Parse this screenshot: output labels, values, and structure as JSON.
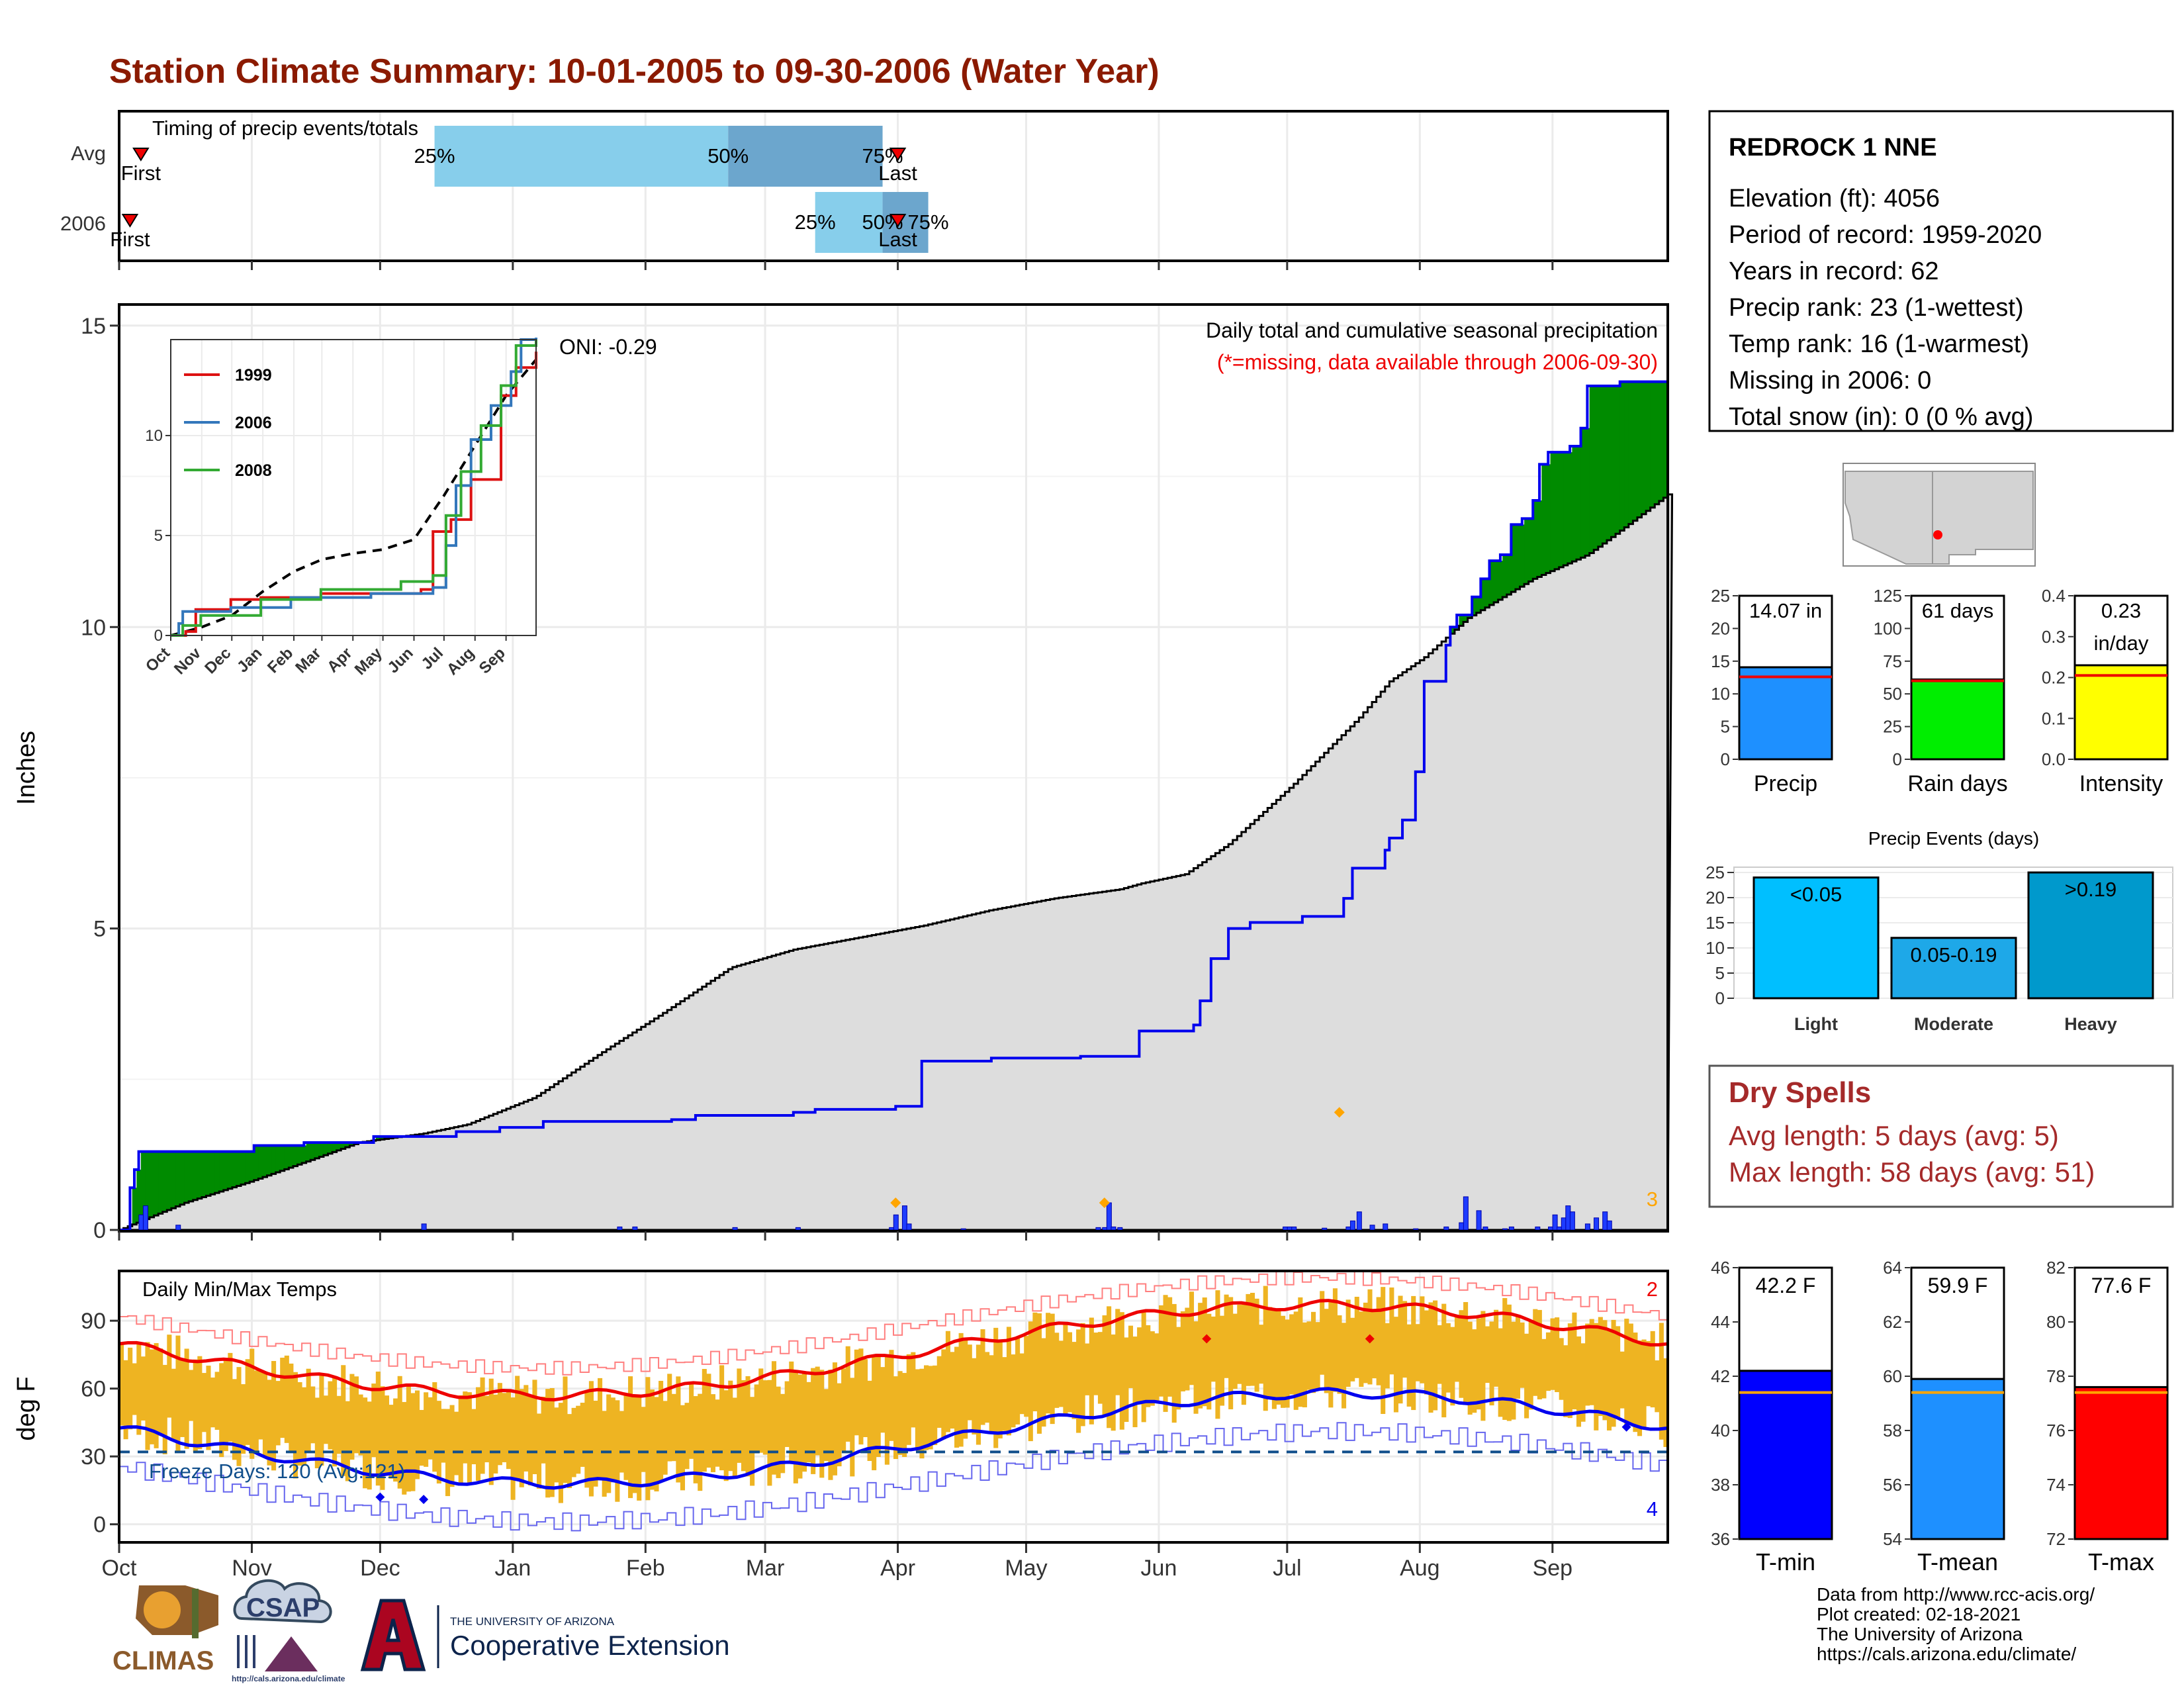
{
  "title": "Station Climate Summary: 10-01-2005 to 09-30-2006 (Water Year)",
  "colors": {
    "title": "#8B1A00",
    "dry_spells": "#A52A2A",
    "missing_note": "#EE0000",
    "precip_blue": "#1E90FF",
    "rain_green": "#00EE00",
    "intensity_yellow": "#FFFF00",
    "light": "#00BFFF",
    "moderate": "#1EA8E8",
    "heavy": "#0099CC",
    "cumulative_surplus": "#008B00",
    "cumulative_deficit": "#8B5A00",
    "normal_fill": "#DDDDDD",
    "temp_band": "#EEB422",
    "tmin_bar": "#0000FF",
    "tmean_bar": "#1E90FF",
    "tmax_bar": "#FF0000",
    "timing_light": "#87CEEB",
    "timing_dark": "#6CA6CD"
  },
  "timing": {
    "title": "Timing of precip events/totals",
    "rows": [
      {
        "label": "Avg",
        "first_day": 10,
        "last_day": 358,
        "p25_day": 145,
        "p50_day": 280,
        "p75_day": 351,
        "first_label": "First",
        "last_label": "Last",
        "p25_label": "25%",
        "p50_label": "50%",
        "p75_label": "75%"
      },
      {
        "label": "2006",
        "first_day": 5,
        "last_day": 358,
        "p25_day": 320,
        "p50_day": 351,
        "p75_day": 372,
        "first_label": "First",
        "last_label": "Last",
        "p25_label": "25%",
        "p50_label": "50%",
        "p75_label": "75%"
      }
    ]
  },
  "precip": {
    "title": "Daily total and cumulative seasonal precipitation",
    "missing_note": "(*=missing, data available through 2006-09-30)",
    "oni": "ONI: -0.29",
    "ylabel": "Inches",
    "yticks": [
      "0",
      "5",
      "10",
      "15"
    ],
    "months": [
      "Oct",
      "Nov",
      "Dec",
      "Jan",
      "Feb",
      "Mar",
      "Apr",
      "May",
      "Jun",
      "Jul",
      "Aug",
      "Sep"
    ],
    "corner_count": "3",
    "cumulative_2006": [
      [
        0,
        0
      ],
      [
        5,
        0.7
      ],
      [
        7,
        1.0
      ],
      [
        9,
        1.3
      ],
      [
        60,
        1.3
      ],
      [
        62,
        1.4
      ],
      [
        75,
        1.4
      ],
      [
        85,
        1.45
      ],
      [
        115,
        1.45
      ],
      [
        117,
        1.55
      ],
      [
        150,
        1.55
      ],
      [
        155,
        1.63
      ],
      [
        175,
        1.7
      ],
      [
        195,
        1.8
      ],
      [
        240,
        1.8
      ],
      [
        254,
        1.83
      ],
      [
        265,
        1.9
      ],
      [
        310,
        1.95
      ],
      [
        320,
        2.0
      ],
      [
        357,
        2.05
      ],
      [
        369,
        2.8
      ],
      [
        383,
        2.8
      ],
      [
        401,
        2.85
      ],
      [
        442,
        2.88
      ],
      [
        469,
        3.3
      ],
      [
        494,
        3.4
      ],
      [
        497,
        3.8
      ],
      [
        502,
        4.5
      ],
      [
        510,
        5.0
      ],
      [
        520,
        5.1
      ],
      [
        544,
        5.2
      ],
      [
        563,
        5.5
      ],
      [
        567,
        6.0
      ],
      [
        582,
        6.3
      ],
      [
        584,
        6.5
      ],
      [
        590,
        6.8
      ],
      [
        596,
        7.6
      ],
      [
        600,
        9.1
      ],
      [
        610,
        9.7
      ],
      [
        612,
        10.0
      ],
      [
        615,
        10.2
      ],
      [
        622,
        10.5
      ],
      [
        626,
        10.8
      ],
      [
        630,
        11.1
      ],
      [
        635,
        11.2
      ],
      [
        640,
        11.7
      ],
      [
        645,
        11.8
      ],
      [
        650,
        12.1
      ],
      [
        653,
        12.7
      ],
      [
        657,
        12.9
      ],
      [
        667,
        13.0
      ],
      [
        672,
        13.3
      ],
      [
        675,
        14.0
      ],
      [
        690,
        14.07
      ],
      [
        712,
        14.07
      ]
    ],
    "normal_cumulative": [
      [
        0,
        0
      ],
      [
        30,
        0.45
      ],
      [
        60,
        0.8
      ],
      [
        91,
        1.2
      ],
      [
        110,
        1.45
      ],
      [
        140,
        1.6
      ],
      [
        160,
        1.75
      ],
      [
        191,
        2.2
      ],
      [
        222,
        2.95
      ],
      [
        250,
        3.6
      ],
      [
        281,
        4.35
      ],
      [
        310,
        4.65
      ],
      [
        340,
        4.85
      ],
      [
        370,
        5.05
      ],
      [
        400,
        5.3
      ],
      [
        430,
        5.5
      ],
      [
        460,
        5.65
      ],
      [
        470,
        5.75
      ],
      [
        490,
        5.9
      ],
      [
        510,
        6.4
      ],
      [
        540,
        7.4
      ],
      [
        570,
        8.5
      ],
      [
        584,
        9.1
      ],
      [
        600,
        9.5
      ],
      [
        620,
        10.15
      ],
      [
        650,
        10.8
      ],
      [
        675,
        11.2
      ],
      [
        690,
        11.6
      ],
      [
        712,
        12.2
      ]
    ],
    "daily_events": [
      [
        10,
        0.25
      ],
      [
        12,
        0.4
      ],
      [
        27,
        0.08
      ],
      [
        140,
        0.1
      ],
      [
        230,
        0.05
      ],
      [
        237,
        0.05
      ],
      [
        283,
        0.04
      ],
      [
        312,
        0.04
      ],
      [
        355,
        0.04
      ],
      [
        357,
        0.25
      ],
      [
        361,
        0.4
      ],
      [
        363,
        0.1
      ],
      [
        388,
        0.02
      ],
      [
        450,
        0.04
      ],
      [
        453,
        0.04
      ],
      [
        455,
        0.45
      ],
      [
        457,
        0.05
      ],
      [
        460,
        0.04
      ],
      [
        536,
        0.05
      ],
      [
        538,
        0.05
      ],
      [
        540,
        0.05
      ],
      [
        554,
        0.03
      ],
      [
        565,
        0.05
      ],
      [
        567,
        0.15
      ],
      [
        570,
        0.3
      ],
      [
        576,
        0.08
      ],
      [
        582,
        0.1
      ],
      [
        596,
        0.02
      ],
      [
        610,
        0.05
      ],
      [
        617,
        0.12
      ],
      [
        619,
        0.55
      ],
      [
        625,
        0.32
      ],
      [
        628,
        0.05
      ],
      [
        637,
        0.02
      ],
      [
        640,
        0.05
      ],
      [
        652,
        0.05
      ],
      [
        658,
        0.05
      ],
      [
        660,
        0.25
      ],
      [
        662,
        0.05
      ],
      [
        664,
        0.2
      ],
      [
        666,
        0.4
      ],
      [
        668,
        0.3
      ],
      [
        675,
        0.1
      ],
      [
        679,
        0.2
      ],
      [
        683,
        0.3
      ],
      [
        685,
        0.15
      ]
    ],
    "record_markers": [
      [
        357,
        0.45
      ],
      [
        453,
        0.45
      ],
      [
        561,
        1.95
      ]
    ],
    "inset": {
      "legend": [
        "1999",
        "2006",
        "2008"
      ],
      "series_colors": [
        "#DD1111",
        "#3377BB",
        "#33AA33"
      ],
      "yticks": [
        "0",
        "5",
        "10"
      ],
      "xticks": [
        "Oct",
        "Nov",
        "Dec",
        "Jan",
        "Feb",
        "Mar",
        "Apr",
        "May",
        "Jun",
        "Jul",
        "Aug",
        "Sep"
      ]
    }
  },
  "temps": {
    "title": "Daily Min/Max Temps",
    "ylabel": "deg F",
    "yticks": [
      "0",
      "30",
      "60",
      "90"
    ],
    "freeze_label": "Freeze Days: 120 (Avg:121)",
    "max_count": "2",
    "min_count": "4",
    "freeze_line": 32,
    "months": [
      "Oct",
      "Nov",
      "Dec",
      "Jan",
      "Feb",
      "Mar",
      "Apr",
      "May",
      "Jun",
      "Jul",
      "Aug",
      "Sep"
    ]
  },
  "station": {
    "name": "REDROCK 1 NNE",
    "lines": [
      "Elevation (ft): 4056",
      "Period of record: 1959-2020",
      "Years in record: 62",
      "Precip rank: 23 (1-wettest)",
      "Temp rank: 16 (1-warmest)",
      "Missing in 2006: 0",
      "Total snow (in): 0 (0 % avg)"
    ]
  },
  "mini_bars": [
    {
      "label": "Precip",
      "value_label": "14.07 in",
      "value": 14.07,
      "avg": 12.6,
      "max": 25,
      "ticks": [
        "0",
        "5",
        "10",
        "15",
        "20",
        "25"
      ],
      "color": "#1E90FF"
    },
    {
      "label": "Rain days",
      "value_label": "61 days",
      "value": 61,
      "avg": 60,
      "max": 125,
      "ticks": [
        "0",
        "25",
        "50",
        "75",
        "100",
        "125"
      ],
      "color": "#00EE00"
    },
    {
      "label": "Intensity",
      "value_label": "0.23",
      "value_label2": "in/day",
      "value": 0.23,
      "avg": 0.205,
      "max": 0.4,
      "ticks": [
        "0.0",
        "0.1",
        "0.2",
        "0.3",
        "0.4"
      ],
      "color": "#FFFF00"
    }
  ],
  "events": {
    "title": "Precip Events (days)",
    "yticks": [
      "0",
      "5",
      "10",
      "15",
      "20",
      "25"
    ],
    "bars": [
      {
        "label": "Light",
        "range": "<0.05",
        "value": 24,
        "color": "#00BFFF"
      },
      {
        "label": "Moderate",
        "range": "0.05-0.19",
        "value": 12,
        "color": "#1EA8E8"
      },
      {
        "label": "Heavy",
        "range": ">0.19",
        "value": 25,
        "color": "#0099CC"
      }
    ]
  },
  "dry_spells": {
    "title": "Dry Spells",
    "lines": [
      "Avg length: 5 days (avg: 5)",
      "Max length: 58 days (avg: 51)"
    ]
  },
  "temp_bars": [
    {
      "label": "T-min",
      "value_label": "42.2 F",
      "value": 42.2,
      "avg": 41.4,
      "min": 36,
      "max": 46,
      "ticks": [
        "36",
        "38",
        "40",
        "42",
        "44",
        "46"
      ],
      "color": "#0000FF"
    },
    {
      "label": "T-mean",
      "value_label": "59.9 F",
      "value": 59.9,
      "avg": 59.4,
      "min": 54,
      "max": 64,
      "ticks": [
        "54",
        "56",
        "58",
        "60",
        "62",
        "64"
      ],
      "color": "#1E90FF"
    },
    {
      "label": "T-max",
      "value_label": "77.6 F",
      "value": 77.6,
      "avg": 77.4,
      "min": 72,
      "max": 82,
      "ticks": [
        "72",
        "74",
        "76",
        "78",
        "80",
        "82"
      ],
      "color": "#FF0000"
    }
  ],
  "footer": {
    "lines": [
      "Data from http://www.rcc-acis.org/",
      "Plot created: 02-18-2021",
      "The University of Arizona",
      "https://cals.arizona.edu/climate/"
    ],
    "climas": "CLIMAS",
    "csap": "CSAP",
    "csap_url": "http://cals.arizona.edu/climate",
    "ua_small": "THE UNIVERSITY OF ARIZONA",
    "ua_large": "Cooperative Extension"
  }
}
